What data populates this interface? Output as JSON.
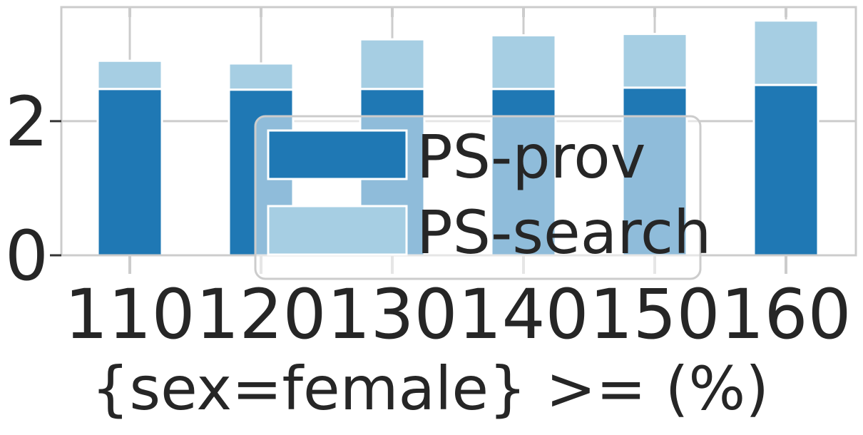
{
  "chart_data": {
    "type": "bar",
    "stacked": true,
    "title": "",
    "xlabel": "{sex=female} >= (%)",
    "ylabel": "",
    "categories": [
      "110",
      "120",
      "130",
      "140",
      "150",
      "160"
    ],
    "series": [
      {
        "name": "PS-prov",
        "color": "#1f78b4",
        "values": [
          2.48,
          2.47,
          2.48,
          2.48,
          2.5,
          2.54
        ]
      },
      {
        "name": "PS-search",
        "color": "#a6cee3",
        "values": [
          0.42,
          0.39,
          0.74,
          0.8,
          0.8,
          0.96
        ]
      }
    ],
    "ylim": [
      0,
      3.7
    ],
    "yticks": [
      "0",
      "2"
    ],
    "grid": true,
    "legend": "center-bottom"
  }
}
